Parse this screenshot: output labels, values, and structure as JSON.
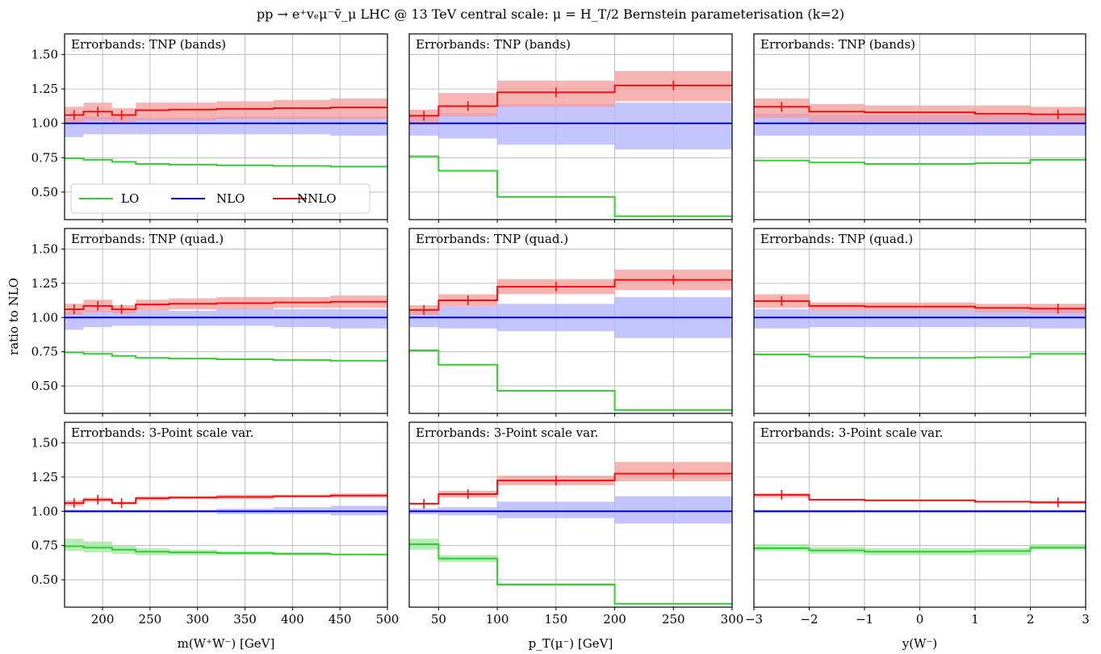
{
  "title": "pp → e⁺vₑμ⁻v̄_μ LHC @ 13 TeV central scale: μ = H_T/2 Bernstein parameterisation (k=2)",
  "ylabel": "ratio to NLO",
  "colors": {
    "LO": "#33cc33",
    "NLO": "#0000dd",
    "NNLO": "#ee1111",
    "LO_band": "#9ee69e",
    "NLO_band": "#b0b0ff",
    "NNLO_band": "#f59a9a",
    "grid": "#b0b0b0"
  },
  "legend": {
    "placement": "bottom-left of first panel",
    "entries": [
      "LO",
      "NLO",
      "NNLO"
    ]
  },
  "row_annotations": [
    "Errorbands: TNP (bands)",
    "Errorbands: TNP (quad.)",
    "Errorbands: 3-Point scale var."
  ],
  "columns": [
    {
      "xlabel": "m(W⁺W⁻) [GeV]",
      "xlim": [
        160,
        500
      ],
      "xticks": [
        200,
        250,
        300,
        350,
        400,
        450,
        500
      ],
      "xtick_labels": [
        "200",
        "250",
        "300",
        "350",
        "400",
        "450",
        "500"
      ]
    },
    {
      "xlabel": "p_T(μ⁻) [GeV]",
      "xlim": [
        25,
        300
      ],
      "xticks": [
        50,
        100,
        150,
        200,
        250,
        300
      ],
      "xtick_labels": [
        "50",
        "100",
        "150",
        "200",
        "250",
        "300"
      ]
    },
    {
      "xlabel": "y(W⁻)",
      "xlim": [
        -3,
        3
      ],
      "xticks": [
        -3,
        -2,
        -1,
        0,
        1,
        2,
        3
      ],
      "xtick_labels": [
        "−3",
        "−2",
        "−1",
        "0",
        "1",
        "2",
        "3"
      ]
    }
  ],
  "yaxis": {
    "ylim": [
      0.3,
      1.65
    ],
    "yticks": [
      0.5,
      0.75,
      1.0,
      1.25,
      1.5
    ],
    "ytick_labels": [
      "0.50",
      "0.75",
      "1.00",
      "1.25",
      "1.50"
    ]
  },
  "chart_data": {
    "type": "line",
    "grid": true,
    "layout": "3 rows x 3 columns, shared y axis",
    "panels": [
      {
        "row": 0,
        "col": 0,
        "edges": [
          160,
          180,
          210,
          235,
          270,
          320,
          380,
          440,
          500
        ],
        "series": [
          {
            "name": "LO",
            "values": [
              0.745,
              0.735,
              0.72,
              0.705,
              0.7,
              0.695,
              0.69,
              0.685
            ],
            "band_lo": null,
            "band_hi": null
          },
          {
            "name": "NLO",
            "values": [
              1.0,
              1.0,
              1.0,
              1.0,
              1.0,
              1.0,
              1.0,
              1.0
            ],
            "band_lo": [
              0.9,
              0.92,
              0.92,
              0.92,
              0.92,
              0.92,
              0.92,
              0.91
            ],
            "band_hi": [
              1.04,
              1.05,
              1.05,
              1.04,
              1.04,
              1.05,
              1.05,
              1.05
            ]
          },
          {
            "name": "NNLO",
            "values": [
              1.06,
              1.085,
              1.06,
              1.095,
              1.1,
              1.105,
              1.11,
              1.115
            ],
            "band_lo": [
              1.0,
              1.02,
              1.01,
              1.02,
              1.02,
              1.03,
              1.03,
              1.03
            ],
            "band_hi": [
              1.12,
              1.15,
              1.11,
              1.15,
              1.15,
              1.16,
              1.17,
              1.18
            ],
            "errbar_x": [
              170,
              195,
              220
            ]
          }
        ]
      },
      {
        "row": 0,
        "col": 1,
        "edges": [
          25,
          50,
          100,
          200,
          300
        ],
        "series": [
          {
            "name": "LO",
            "values": [
              0.76,
              0.655,
              0.465,
              0.325
            ],
            "band_lo": null,
            "band_hi": null
          },
          {
            "name": "NLO",
            "values": [
              1.0,
              1.0,
              1.0,
              1.0
            ],
            "band_lo": [
              0.91,
              0.89,
              0.845,
              0.81
            ],
            "band_hi": [
              1.06,
              1.075,
              1.14,
              1.15
            ]
          },
          {
            "name": "NNLO",
            "values": [
              1.055,
              1.125,
              1.225,
              1.275
            ],
            "band_lo": [
              0.99,
              1.05,
              1.12,
              1.16
            ],
            "band_hi": [
              1.1,
              1.22,
              1.31,
              1.38
            ],
            "errbar_x": [
              37.5,
              75,
              150,
              250
            ]
          }
        ]
      },
      {
        "row": 0,
        "col": 2,
        "edges": [
          -3,
          -2,
          -1,
          1,
          2,
          3
        ],
        "series": [
          {
            "name": "LO",
            "values": [
              0.73,
              0.715,
              0.705,
              0.71,
              0.735
            ],
            "band_lo": null,
            "band_hi": null
          },
          {
            "name": "NLO",
            "values": [
              1.0,
              1.0,
              1.0,
              1.0,
              1.0
            ],
            "band_lo": [
              0.91,
              0.91,
              0.91,
              0.91,
              0.91
            ],
            "band_hi": [
              1.07,
              1.06,
              1.06,
              1.06,
              1.07
            ]
          },
          {
            "name": "NNLO",
            "values": [
              1.12,
              1.085,
              1.08,
              1.07,
              1.065
            ],
            "band_lo": [
              1.04,
              1.01,
              1.01,
              1.0,
              0.99
            ],
            "band_hi": [
              1.18,
              1.14,
              1.13,
              1.13,
              1.12
            ],
            "errbar_x": [
              -2.5,
              2.5
            ]
          }
        ]
      },
      {
        "row": 1,
        "col": 0,
        "edges": [
          160,
          180,
          210,
          235,
          270,
          320,
          380,
          440,
          500
        ],
        "series": [
          {
            "name": "LO",
            "values": [
              0.745,
              0.735,
              0.72,
              0.705,
              0.7,
              0.695,
              0.69,
              0.685
            ],
            "band_lo": null,
            "band_hi": null
          },
          {
            "name": "NLO",
            "values": [
              1.0,
              1.0,
              1.0,
              1.0,
              1.0,
              1.0,
              1.0,
              1.0
            ],
            "band_lo": [
              0.91,
              0.93,
              0.94,
              0.94,
              0.94,
              0.94,
              0.93,
              0.92
            ],
            "band_hi": [
              1.04,
              1.05,
              1.05,
              1.05,
              1.05,
              1.06,
              1.06,
              1.06
            ]
          },
          {
            "name": "NNLO",
            "values": [
              1.06,
              1.085,
              1.06,
              1.095,
              1.1,
              1.105,
              1.11,
              1.115
            ],
            "band_lo": [
              1.02,
              1.04,
              1.03,
              1.05,
              1.06,
              1.06,
              1.07,
              1.07
            ],
            "band_hi": [
              1.1,
              1.13,
              1.09,
              1.13,
              1.14,
              1.15,
              1.15,
              1.16
            ],
            "errbar_x": [
              170,
              195,
              220
            ]
          }
        ]
      },
      {
        "row": 1,
        "col": 1,
        "edges": [
          25,
          50,
          100,
          200,
          300
        ],
        "series": [
          {
            "name": "LO",
            "values": [
              0.76,
              0.655,
              0.465,
              0.325
            ],
            "band_lo": null,
            "band_hi": null
          },
          {
            "name": "NLO",
            "values": [
              1.0,
              1.0,
              1.0,
              1.0
            ],
            "band_lo": [
              0.93,
              0.92,
              0.9,
              0.85
            ],
            "band_hi": [
              1.05,
              1.08,
              1.1,
              1.15
            ]
          },
          {
            "name": "NNLO",
            "values": [
              1.055,
              1.125,
              1.225,
              1.275
            ],
            "band_lo": [
              1.02,
              1.08,
              1.17,
              1.2
            ],
            "band_hi": [
              1.09,
              1.17,
              1.28,
              1.35
            ],
            "errbar_x": [
              37.5,
              75,
              150,
              250
            ]
          }
        ]
      },
      {
        "row": 1,
        "col": 2,
        "edges": [
          -3,
          -2,
          -1,
          1,
          2,
          3
        ],
        "series": [
          {
            "name": "LO",
            "values": [
              0.73,
              0.715,
              0.705,
              0.71,
              0.735
            ],
            "band_lo": null,
            "band_hi": null
          },
          {
            "name": "NLO",
            "values": [
              1.0,
              1.0,
              1.0,
              1.0,
              1.0
            ],
            "band_lo": [
              0.92,
              0.93,
              0.93,
              0.93,
              0.92
            ],
            "band_hi": [
              1.06,
              1.05,
              1.05,
              1.05,
              1.06
            ]
          },
          {
            "name": "NNLO",
            "values": [
              1.12,
              1.085,
              1.08,
              1.07,
              1.065
            ],
            "band_lo": [
              1.07,
              1.05,
              1.05,
              1.04,
              1.03
            ],
            "band_hi": [
              1.17,
              1.11,
              1.11,
              1.1,
              1.1
            ],
            "errbar_x": [
              -2.5,
              2.5
            ]
          }
        ]
      },
      {
        "row": 2,
        "col": 0,
        "edges": [
          160,
          180,
          210,
          235,
          270,
          320,
          380,
          440,
          500
        ],
        "series": [
          {
            "name": "LO",
            "values": [
              0.745,
              0.735,
              0.72,
              0.705,
              0.7,
              0.695,
              0.69,
              0.685
            ],
            "band_lo": [
              0.71,
              0.7,
              0.69,
              0.68,
              0.68,
              0.68,
              0.68,
              0.68
            ],
            "band_hi": [
              0.8,
              0.78,
              0.75,
              0.73,
              0.72,
              0.71,
              0.7,
              0.69
            ]
          },
          {
            "name": "NLO",
            "values": [
              1.0,
              1.0,
              1.0,
              1.0,
              1.0,
              1.0,
              1.0,
              1.0
            ],
            "band_lo": [
              0.99,
              0.99,
              0.99,
              0.99,
              0.99,
              0.98,
              0.98,
              0.97
            ],
            "band_hi": [
              1.01,
              1.01,
              1.01,
              1.01,
              1.01,
              1.02,
              1.03,
              1.04
            ]
          },
          {
            "name": "NNLO",
            "values": [
              1.06,
              1.085,
              1.06,
              1.095,
              1.1,
              1.105,
              1.11,
              1.115
            ],
            "band_lo": [
              1.04,
              1.07,
              1.05,
              1.08,
              1.09,
              1.09,
              1.1,
              1.1
            ],
            "band_hi": [
              1.08,
              1.1,
              1.07,
              1.11,
              1.11,
              1.12,
              1.12,
              1.13
            ],
            "errbar_x": [
              170,
              195,
              220
            ]
          }
        ]
      },
      {
        "row": 2,
        "col": 1,
        "edges": [
          25,
          50,
          100,
          200,
          300
        ],
        "series": [
          {
            "name": "LO",
            "values": [
              0.76,
              0.655,
              0.465,
              0.325
            ],
            "band_lo": [
              0.72,
              0.63,
              0.455,
              0.32
            ],
            "band_hi": [
              0.8,
              0.68,
              0.475,
              0.33
            ]
          },
          {
            "name": "NLO",
            "values": [
              1.0,
              1.0,
              1.0,
              1.0
            ],
            "band_lo": [
              0.98,
              0.97,
              0.95,
              0.91
            ],
            "band_hi": [
              1.02,
              1.03,
              1.07,
              1.11
            ]
          },
          {
            "name": "NNLO",
            "values": [
              1.055,
              1.125,
              1.225,
              1.275
            ],
            "band_lo": [
              1.05,
              1.1,
              1.19,
              1.22
            ],
            "band_hi": [
              1.06,
              1.15,
              1.26,
              1.36
            ],
            "errbar_x": [
              37.5,
              75,
              150,
              250
            ]
          }
        ]
      },
      {
        "row": 2,
        "col": 2,
        "edges": [
          -3,
          -2,
          -1,
          1,
          2,
          3
        ],
        "series": [
          {
            "name": "LO",
            "values": [
              0.73,
              0.715,
              0.705,
              0.71,
              0.735
            ],
            "band_lo": [
              0.71,
              0.69,
              0.68,
              0.68,
              0.72
            ],
            "band_hi": [
              0.76,
              0.74,
              0.73,
              0.73,
              0.76
            ]
          },
          {
            "name": "NLO",
            "values": [
              1.0,
              1.0,
              1.0,
              1.0,
              1.0
            ],
            "band_lo": [
              0.99,
              0.99,
              0.99,
              0.99,
              0.99
            ],
            "band_hi": [
              1.01,
              1.01,
              1.01,
              1.01,
              1.01
            ]
          },
          {
            "name": "NNLO",
            "values": [
              1.12,
              1.085,
              1.08,
              1.07,
              1.065
            ],
            "band_lo": [
              1.1,
              1.08,
              1.075,
              1.065,
              1.055
            ],
            "band_hi": [
              1.13,
              1.09,
              1.085,
              1.075,
              1.075
            ],
            "errbar_x": [
              -2.5,
              2.5
            ]
          }
        ]
      }
    ]
  }
}
